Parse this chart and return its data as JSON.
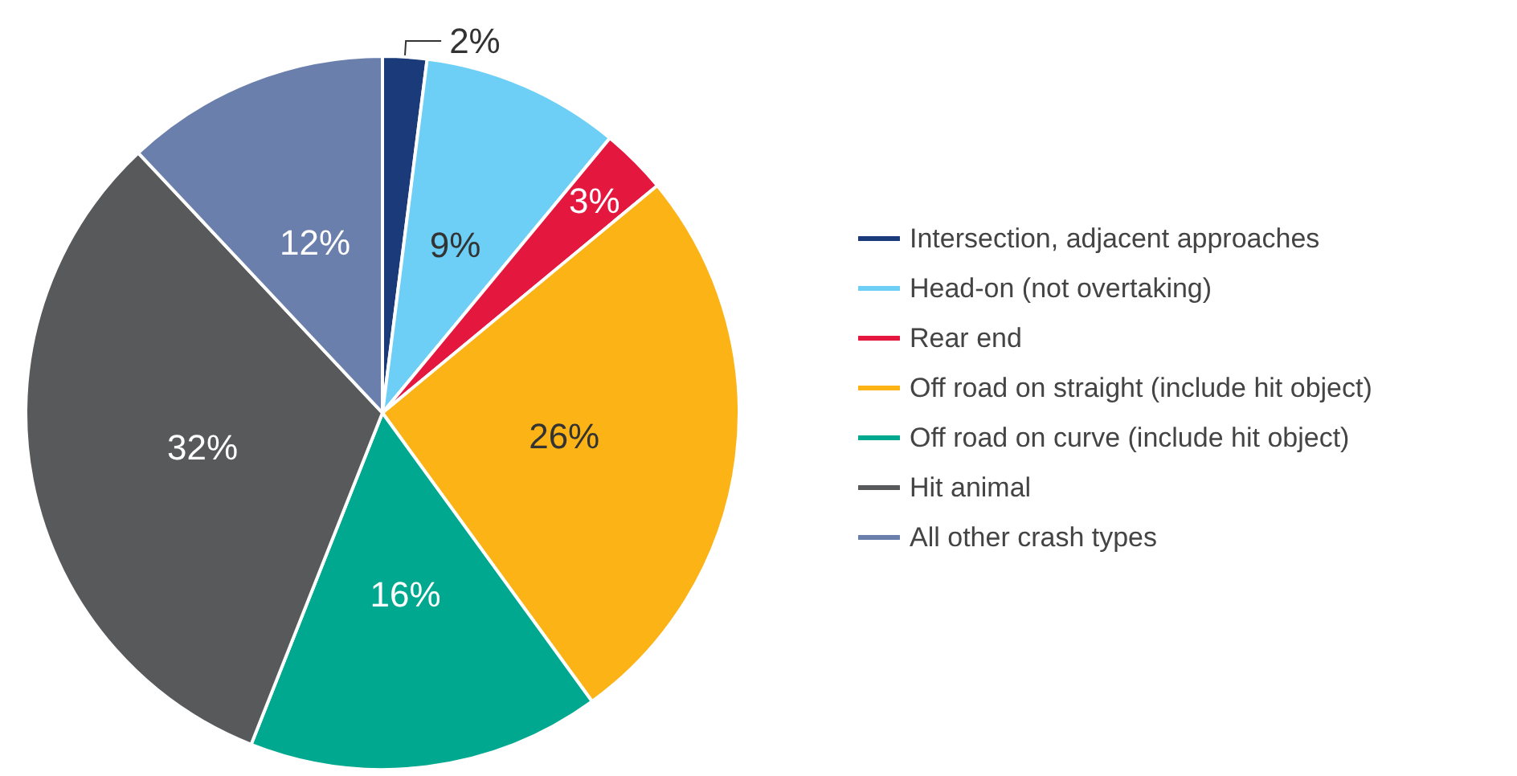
{
  "chart_data": {
    "type": "pie",
    "categories": [
      "Intersection, adjacent approaches",
      "Head-on (not overtaking)",
      "Rear end",
      "Off road on straight (include hit object)",
      "Off road on curve (include hit object)",
      "Hit animal",
      "All other crash types"
    ],
    "values": [
      2,
      9,
      3,
      26,
      16,
      32,
      12
    ],
    "colors": [
      "#1a3a7a",
      "#6dcff6",
      "#e4173f",
      "#fbb316",
      "#00a88f",
      "#58595b",
      "#6a7fac"
    ],
    "value_labels": [
      "2%",
      "9%",
      "3%",
      "26%",
      "16%",
      "32%",
      "12%"
    ],
    "legend": "right"
  }
}
